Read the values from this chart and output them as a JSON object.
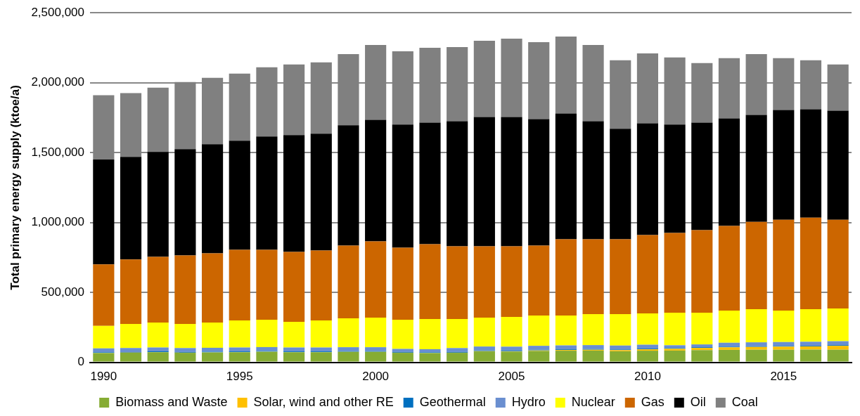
{
  "chart_data": {
    "type": "bar",
    "stacked": true,
    "ylabel": "Total primary energy supply (ktoe/a)",
    "categories": [
      "1990",
      null,
      null,
      null,
      null,
      "1995",
      null,
      null,
      null,
      null,
      "2000",
      null,
      null,
      null,
      null,
      "2005",
      null,
      null,
      null,
      null,
      "2010",
      null,
      null,
      null,
      null,
      "2015",
      null,
      null
    ],
    "series": [
      {
        "name": "Biomass and Waste",
        "color": "#86ac34",
        "values": [
          66000,
          68000,
          72000,
          68000,
          70000,
          72000,
          75000,
          72000,
          72000,
          74000,
          74000,
          68000,
          66000,
          68000,
          78000,
          76000,
          81000,
          83000,
          84000,
          79000,
          83000,
          84000,
          87000,
          89000,
          90000,
          90000,
          91000,
          90000
        ]
      },
      {
        "name": "Solar, wind and other RE",
        "color": "#ffc000",
        "values": [
          1000,
          1000,
          1000,
          1000,
          1000,
          1000,
          1000,
          1000,
          1000,
          1000,
          1000,
          1000,
          1000,
          1000,
          2000,
          3000,
          4000,
          5000,
          6000,
          8000,
          10000,
          13000,
          16000,
          18000,
          20000,
          22000,
          23000,
          28000
        ]
      },
      {
        "name": "Geothermal",
        "color": "#0070c0",
        "values": [
          5000,
          5000,
          5000,
          5000,
          5000,
          5000,
          5000,
          5000,
          5000,
          5000,
          5000,
          5000,
          5000,
          5000,
          5000,
          5000,
          5000,
          5000,
          5000,
          5000,
          5000,
          5000,
          5000,
          5000,
          5000,
          5000,
          5000,
          5000
        ]
      },
      {
        "name": "Hydro",
        "color": "#6a8fd0",
        "values": [
          28000,
          28000,
          28000,
          28000,
          28000,
          28000,
          28000,
          28000,
          28000,
          28000,
          28000,
          22000,
          22000,
          28000,
          28000,
          28000,
          28000,
          28000,
          28000,
          28000,
          28000,
          20000,
          20000,
          28000,
          28000,
          28000,
          28000,
          28000
        ]
      },
      {
        "name": "Nuclear",
        "color": "#ffff00",
        "values": [
          160000,
          173000,
          179000,
          173000,
          181000,
          194000,
          196000,
          184000,
          194000,
          207000,
          212000,
          209000,
          216000,
          208000,
          207000,
          213000,
          217000,
          214000,
          222000,
          225000,
          224000,
          233000,
          227000,
          230000,
          237000,
          225000,
          233000,
          234000
        ]
      },
      {
        "name": "Gas",
        "color": "#cc6600",
        "values": [
          440000,
          460000,
          470000,
          490000,
          495000,
          505000,
          500000,
          500000,
          500000,
          520000,
          545000,
          515000,
          535000,
          520000,
          510000,
          505000,
          500000,
          545000,
          535000,
          535000,
          560000,
          570000,
          590000,
          605000,
          625000,
          650000,
          655000,
          635000
        ]
      },
      {
        "name": "Oil",
        "color": "#000000",
        "values": [
          750000,
          735000,
          750000,
          760000,
          780000,
          780000,
          810000,
          835000,
          835000,
          860000,
          870000,
          880000,
          870000,
          895000,
          925000,
          925000,
          905000,
          900000,
          845000,
          790000,
          800000,
          775000,
          770000,
          770000,
          765000,
          785000,
          775000,
          780000
        ]
      },
      {
        "name": "Coal",
        "color": "#808080",
        "values": [
          460000,
          455000,
          460000,
          480000,
          475000,
          480000,
          495000,
          505000,
          510000,
          510000,
          535000,
          525000,
          535000,
          530000,
          545000,
          560000,
          550000,
          550000,
          545000,
          490000,
          500000,
          480000,
          425000,
          430000,
          435000,
          370000,
          350000,
          330000
        ]
      }
    ],
    "ylim": [
      0,
      2500000
    ],
    "yticks": [
      0,
      {
        "value": 500000,
        "label": "500,000"
      },
      {
        "value": 1000000,
        "label": "1,000,000"
      },
      {
        "value": 1500000,
        "label": "1,500,000"
      },
      {
        "value": 2000000,
        "label": "2,000,000"
      },
      {
        "value": 2500000,
        "label": "2,500,000"
      }
    ],
    "grid": "y",
    "legend": "bottom"
  }
}
